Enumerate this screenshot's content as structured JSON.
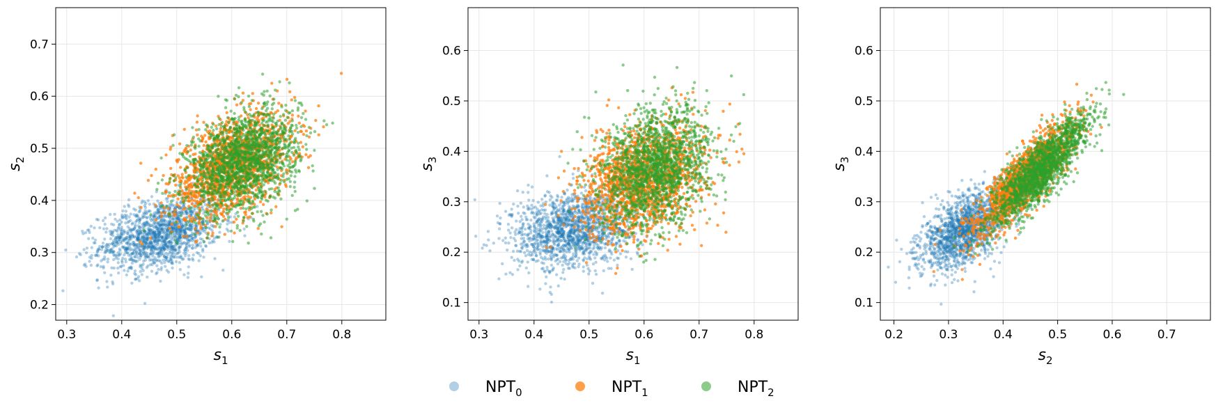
{
  "chart_data": [
    {
      "type": "scatter",
      "title": "",
      "xlabel": "s",
      "xlabel_sub": "1",
      "ylabel": "s",
      "ylabel_sub": "2",
      "xlim": [
        0.28,
        0.88
      ],
      "ylim": [
        0.17,
        0.77
      ],
      "xticks": [
        "0.3",
        "0.4",
        "0.5",
        "0.6",
        "0.7",
        "0.8"
      ],
      "yticks": [
        "0.2",
        "0.3",
        "0.4",
        "0.5",
        "0.6",
        "0.7"
      ],
      "grid": true,
      "series_clusters": [
        {
          "center": [
            0.47,
            0.335
          ],
          "spread": [
            0.055,
            0.035
          ],
          "corr": 0.35,
          "n": 1500
        },
        {
          "center": [
            0.6,
            0.465
          ],
          "spread": [
            0.055,
            0.05
          ],
          "corr": 0.45,
          "n": 1600
        },
        {
          "center": [
            0.62,
            0.475
          ],
          "spread": [
            0.05,
            0.05
          ],
          "corr": 0.35,
          "n": 1700
        }
      ]
    },
    {
      "type": "scatter",
      "title": "",
      "xlabel": "s",
      "xlabel_sub": "1",
      "ylabel": "s",
      "ylabel_sub": "3",
      "xlim": [
        0.28,
        0.88
      ],
      "ylim": [
        0.065,
        0.685
      ],
      "xticks": [
        "0.3",
        "0.4",
        "0.5",
        "0.6",
        "0.7",
        "0.8"
      ],
      "yticks": [
        "0.1",
        "0.2",
        "0.3",
        "0.4",
        "0.5",
        "0.6"
      ],
      "grid": true,
      "series_clusters": [
        {
          "center": [
            0.47,
            0.245
          ],
          "spread": [
            0.055,
            0.04
          ],
          "corr": 0.2,
          "n": 1500
        },
        {
          "center": [
            0.6,
            0.345
          ],
          "spread": [
            0.055,
            0.055
          ],
          "corr": 0.3,
          "n": 1600
        },
        {
          "center": [
            0.62,
            0.365
          ],
          "spread": [
            0.05,
            0.06
          ],
          "corr": 0.25,
          "n": 1700
        }
      ]
    },
    {
      "type": "scatter",
      "title": "",
      "xlabel": "s",
      "xlabel_sub": "2",
      "ylabel": "s",
      "ylabel_sub": "3",
      "xlim": [
        0.175,
        0.78
      ],
      "ylim": [
        0.065,
        0.685
      ],
      "xticks": [
        "0.2",
        "0.3",
        "0.4",
        "0.5",
        "0.6",
        "0.7"
      ],
      "yticks": [
        "0.1",
        "0.2",
        "0.3",
        "0.4",
        "0.5",
        "0.6"
      ],
      "grid": true,
      "series_clusters": [
        {
          "center": [
            0.33,
            0.245
          ],
          "spread": [
            0.04,
            0.04
          ],
          "corr": 0.55,
          "n": 1500
        },
        {
          "center": [
            0.44,
            0.345
          ],
          "spread": [
            0.045,
            0.055
          ],
          "corr": 0.85,
          "n": 1600
        },
        {
          "center": [
            0.47,
            0.365
          ],
          "spread": [
            0.045,
            0.055
          ],
          "corr": 0.85,
          "n": 1700
        }
      ]
    }
  ],
  "series": [
    {
      "name": "NPT",
      "sub": "0",
      "color": "#1f77b4",
      "marker_alpha": 0.35
    },
    {
      "name": "NPT",
      "sub": "1",
      "color": "#ff7f0e",
      "marker_alpha": 0.75
    },
    {
      "name": "NPT",
      "sub": "2",
      "color": "#2ca02c",
      "marker_alpha": 0.55
    }
  ],
  "legend": {
    "placement": "bottom-center",
    "columns": 3
  }
}
